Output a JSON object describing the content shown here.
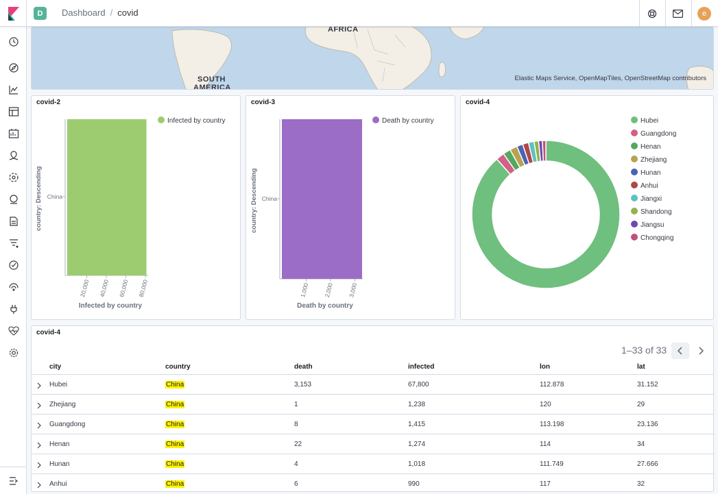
{
  "header": {
    "space_initial": "D",
    "breadcrumbs": [
      "Dashboard",
      "covid"
    ],
    "user_initial": "e"
  },
  "map": {
    "labels": [
      "AFRICA",
      "SOUTH",
      "AMERICA"
    ],
    "attribution": "Elastic Maps Service, OpenMapTiles, OpenStreetMap contributors"
  },
  "panels": {
    "infected": {
      "title": "covid-2",
      "legend": "Infected by country",
      "color": "#9ccc6f",
      "y_label": "country: Descending",
      "x_label": "Infected by country",
      "category": "China",
      "ticks": [
        "20,000",
        "40,000",
        "60,000",
        "80,000"
      ]
    },
    "death": {
      "title": "covid-3",
      "legend": "Death by country",
      "color": "#9b6dc6",
      "y_label": "country: Descending",
      "x_label": "Death by country",
      "category": "China",
      "ticks": [
        "1,000",
        "2,000",
        "3,000"
      ]
    },
    "donut": {
      "title": "covid-4",
      "legend": [
        {
          "label": "Hubei",
          "color": "#6fbf7e"
        },
        {
          "label": "Guangdong",
          "color": "#d36086"
        },
        {
          "label": "Henan",
          "color": "#54a85f"
        },
        {
          "label": "Zhejiang",
          "color": "#b9a250"
        },
        {
          "label": "Hunan",
          "color": "#4a63b5"
        },
        {
          "label": "Anhui",
          "color": "#b04848"
        },
        {
          "label": "Jiangxi",
          "color": "#5ec1c0"
        },
        {
          "label": "Shandong",
          "color": "#92b34f"
        },
        {
          "label": "Jiangsu",
          "color": "#6c48b0"
        },
        {
          "label": "Chongqing",
          "color": "#c1507c"
        }
      ]
    }
  },
  "chart_data": [
    {
      "type": "bar",
      "title": "covid-2",
      "categories": [
        "China"
      ],
      "series": [
        {
          "name": "Infected by country",
          "values": [
            81000
          ]
        }
      ],
      "xlabel": "Infected by country",
      "ylabel": "country: Descending",
      "xlim": [
        0,
        82000
      ]
    },
    {
      "type": "bar",
      "title": "covid-3",
      "categories": [
        "China"
      ],
      "series": [
        {
          "name": "Death by country",
          "values": [
            3300
          ]
        }
      ],
      "xlabel": "Death by country",
      "ylabel": "country: Descending",
      "xlim": [
        0,
        3300
      ]
    },
    {
      "type": "pie",
      "title": "covid-4",
      "labels": [
        "Hubei",
        "Guangdong",
        "Henan",
        "Zhejiang",
        "Hunan",
        "Anhui",
        "Jiangxi",
        "Shandong",
        "Jiangsu",
        "Chongqing"
      ],
      "values": [
        67800,
        1415,
        1274,
        1238,
        1018,
        990,
        935,
        760,
        631,
        576
      ]
    }
  ],
  "table": {
    "title": "covid-4",
    "pager": "1–33 of 33",
    "columns": [
      "city",
      "country",
      "death",
      "infected",
      "lon",
      "lat"
    ],
    "rows": [
      [
        "Hubei",
        "China",
        "3,153",
        "67,800",
        "112.878",
        "31.152"
      ],
      [
        "Zhejiang",
        "China",
        "1",
        "1,238",
        "120",
        "29"
      ],
      [
        "Guangdong",
        "China",
        "8",
        "1,415",
        "113.198",
        "23.136"
      ],
      [
        "Henan",
        "China",
        "22",
        "1,274",
        "114",
        "34"
      ],
      [
        "Hunan",
        "China",
        "4",
        "1,018",
        "111.749",
        "27.666"
      ],
      [
        "Anhui",
        "China",
        "6",
        "990",
        "117",
        "32"
      ]
    ]
  }
}
